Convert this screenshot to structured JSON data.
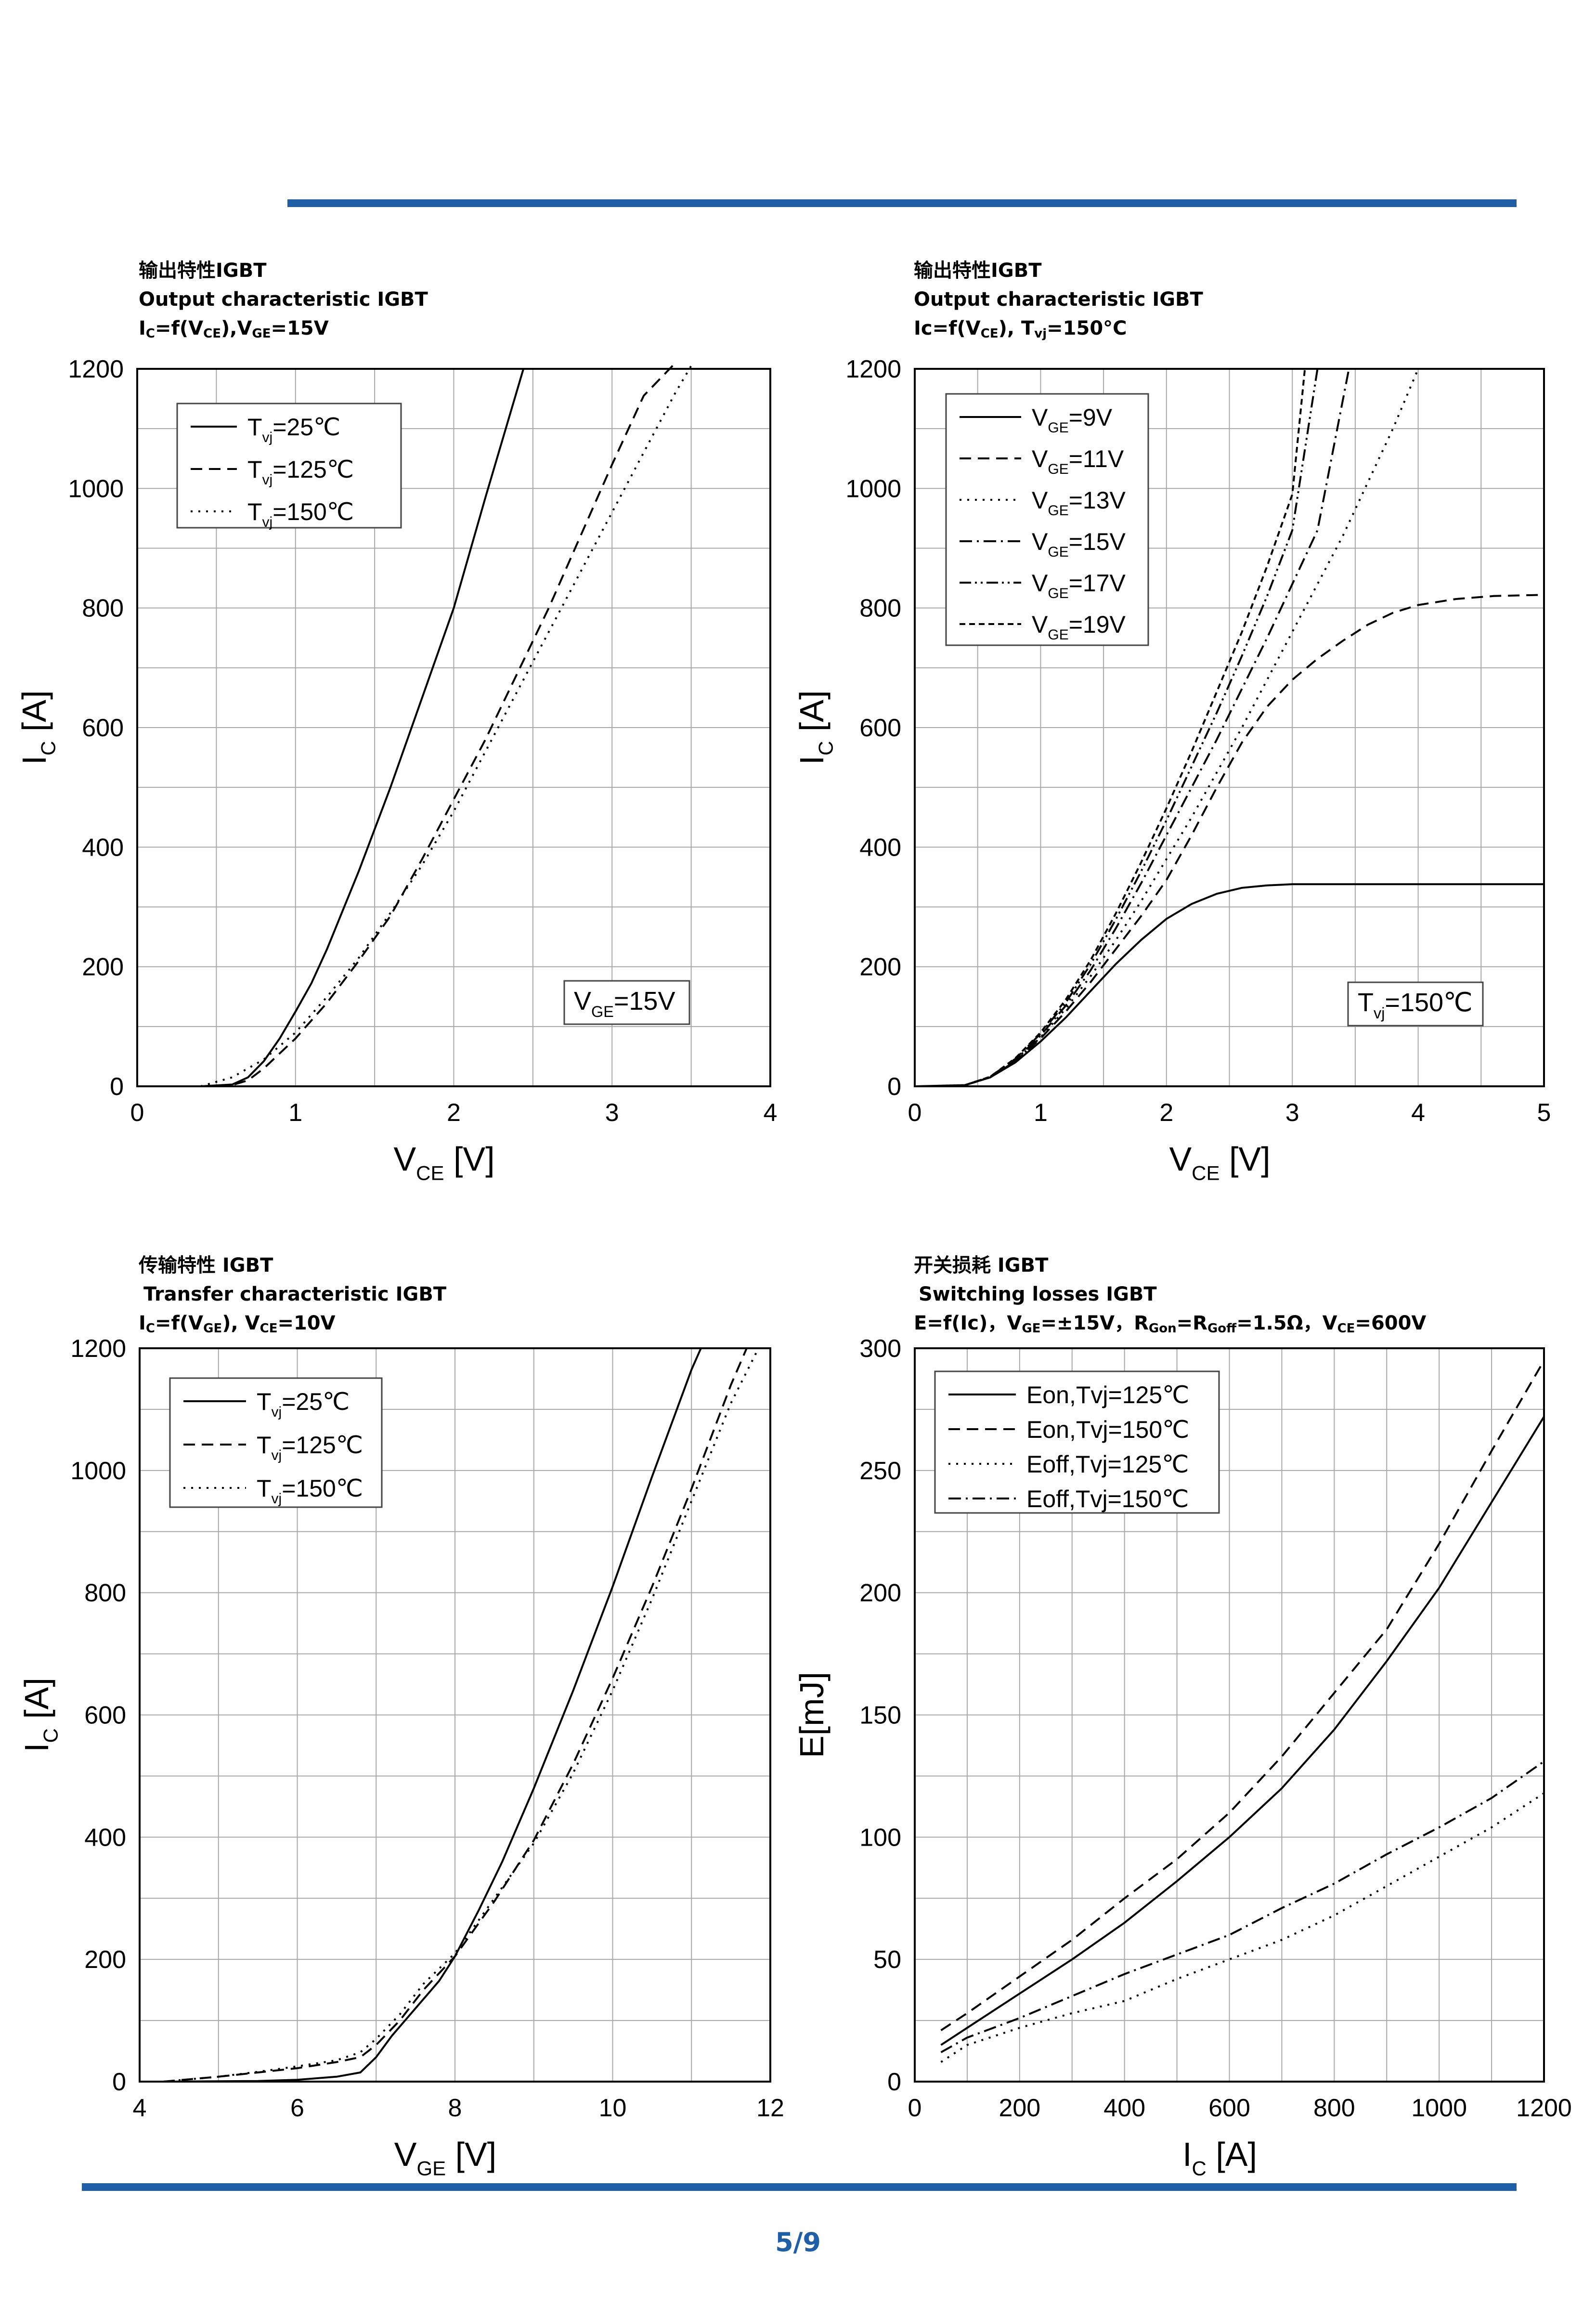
{
  "page": {
    "number": "5/9",
    "accent_color": "#1f5fa8"
  },
  "captions": {
    "c1": {
      "cn": "输出特性IGBT",
      "en": "Output characteristic IGBT",
      "f_a": "I",
      "f_a_sub": "C",
      "f_b": "=f(V",
      "f_b_sub": "CE",
      "f_c": "),V",
      "f_c_sub": "GE",
      "f_d": "=15V"
    },
    "c2": {
      "cn": "输出特性IGBT",
      "en": "Output characteristic IGBT",
      "f_a": "Ic=f(V",
      "f_a_sub": "CE",
      "f_b": "), T",
      "f_b_sub": "vj",
      "f_c": "=150°C"
    },
    "c3": {
      "cn": "传输特性 IGBT",
      "en": "Transfer characteristic IGBT",
      "f_a": "I",
      "f_a_sub": "C",
      "f_b": "=f(V",
      "f_b_sub": "GE",
      "f_c": "), V",
      "f_c_sub": "CE",
      "f_d": "=10V"
    },
    "c4": {
      "cn": "开关损耗 IGBT",
      "en": "Switching losses IGBT",
      "f_a": "E=f(Ic)，V",
      "f_a_sub": "GE",
      "f_b": "=±15V，R",
      "f_b_sub": "Gon",
      "f_c": "=R",
      "f_c_sub": "Goff",
      "f_d": "=1.5Ω，V",
      "f_d_sub": "CE",
      "f_e": "=600V"
    }
  },
  "chart_data": [
    {
      "type": "line",
      "title": "Output characteristic IGBT",
      "xlabel": "V",
      "xlabel_sub": "CE",
      "xlabel_unit": " [V]",
      "ylabel": "I",
      "ylabel_sub": "C",
      "ylabel_unit": " [A]",
      "xlim": [
        0,
        4
      ],
      "ylim": [
        0,
        1200
      ],
      "xticks": [
        0,
        1,
        2,
        3,
        4
      ],
      "yticks": [
        0,
        200,
        400,
        600,
        800,
        1000,
        1200
      ],
      "xgrid": 0.5,
      "ygrid": 100,
      "legend_position": "top-left",
      "annotation": {
        "main": "V",
        "sub": "GE",
        "rest": "=15V",
        "position": "bottom-right"
      },
      "series": [
        {
          "name": "T",
          "name_sub": "vj",
          "name_rest": "=25℃",
          "dash": "solid",
          "x": [
            0.4,
            0.6,
            0.7,
            0.8,
            0.9,
            1.0,
            1.1,
            1.2,
            1.4,
            1.6,
            1.8,
            2.0,
            2.2,
            2.44
          ],
          "y": [
            0,
            3,
            15,
            42,
            80,
            125,
            172,
            230,
            360,
            500,
            650,
            800,
            985,
            1200
          ]
        },
        {
          "name": "T",
          "name_sub": "vj",
          "name_rest": "=125℃",
          "dash": "dash",
          "x": [
            0.5,
            0.6,
            0.7,
            0.8,
            0.9,
            1.0,
            1.2,
            1.4,
            1.6,
            1.8,
            2.0,
            2.2,
            2.4,
            2.6,
            2.8,
            3.0,
            3.2,
            3.4
          ],
          "y": [
            0,
            2,
            10,
            30,
            55,
            80,
            140,
            210,
            285,
            380,
            480,
            580,
            690,
            800,
            920,
            1040,
            1155,
            1210
          ]
        },
        {
          "name": "T",
          "name_sub": "vj",
          "name_rest": "=150℃",
          "dash": "dot",
          "x": [
            0.4,
            0.6,
            0.8,
            1.0,
            1.2,
            1.4,
            1.6,
            1.8,
            2.0,
            2.2,
            2.4,
            2.6,
            2.8,
            3.0,
            3.2,
            3.4,
            3.5
          ],
          "y": [
            0,
            15,
            45,
            90,
            150,
            215,
            290,
            370,
            460,
            560,
            660,
            760,
            860,
            960,
            1060,
            1160,
            1205
          ]
        }
      ]
    },
    {
      "type": "line",
      "title": "Output characteristic IGBT",
      "xlabel": "V",
      "xlabel_sub": "CE",
      "xlabel_unit": " [V]",
      "ylabel": "I",
      "ylabel_sub": "C",
      "ylabel_unit": " [A]",
      "xlim": [
        0,
        5
      ],
      "ylim": [
        0,
        1200
      ],
      "xticks": [
        0,
        1,
        2,
        3,
        4,
        5
      ],
      "yticks": [
        0,
        200,
        400,
        600,
        800,
        1000,
        1200
      ],
      "xgrid": 0.5,
      "ygrid": 100,
      "legend_position": "top-left",
      "annotation": {
        "main": "T",
        "sub": "vj",
        "rest": "=150℃",
        "position": "bottom-right"
      },
      "series": [
        {
          "name": "V",
          "name_sub": "GE",
          "name_rest": "=9V",
          "dash": "solid",
          "x": [
            0,
            0.4,
            0.6,
            0.8,
            1.0,
            1.2,
            1.4,
            1.6,
            1.8,
            2.0,
            2.2,
            2.4,
            2.6,
            2.8,
            3.0,
            3.4,
            4.0,
            5.0
          ],
          "y": [
            0,
            2,
            15,
            40,
            75,
            115,
            160,
            205,
            245,
            280,
            305,
            322,
            332,
            336,
            338,
            338,
            338,
            338
          ]
        },
        {
          "name": "V",
          "name_sub": "GE",
          "name_rest": "=11V",
          "dash": "dash",
          "x": [
            0.4,
            0.6,
            0.8,
            1.0,
            1.2,
            1.4,
            1.6,
            1.8,
            2.0,
            2.2,
            2.4,
            2.6,
            2.8,
            3.0,
            3.2,
            3.4,
            3.6,
            3.8,
            4.0,
            4.3,
            4.6,
            5.0
          ],
          "y": [
            2,
            15,
            42,
            80,
            125,
            175,
            230,
            285,
            345,
            420,
            500,
            575,
            635,
            680,
            715,
            745,
            772,
            792,
            805,
            815,
            820,
            822
          ]
        },
        {
          "name": "V",
          "name_sub": "GE",
          "name_rest": "=13V",
          "dash": "dot",
          "x": [
            0.4,
            0.6,
            0.8,
            1.0,
            1.2,
            1.4,
            1.6,
            1.8,
            2.0,
            2.2,
            2.4,
            2.6,
            2.8,
            3.0,
            3.2,
            3.4,
            3.6,
            3.8,
            4.0
          ],
          "y": [
            2,
            15,
            42,
            82,
            130,
            185,
            245,
            310,
            380,
            450,
            525,
            600,
            680,
            760,
            840,
            920,
            1010,
            1100,
            1200
          ]
        },
        {
          "name": "V",
          "name_sub": "GE",
          "name_rest": "=15V",
          "dash": "dashdot",
          "x": [
            0.4,
            0.6,
            0.8,
            1.0,
            1.2,
            1.4,
            1.6,
            1.8,
            2.0,
            2.2,
            2.4,
            2.6,
            2.8,
            3.0,
            3.2,
            3.45
          ],
          "y": [
            2,
            15,
            44,
            85,
            135,
            195,
            265,
            340,
            420,
            500,
            580,
            665,
            750,
            840,
            930,
            1200
          ]
        },
        {
          "name": "V",
          "name_sub": "GE",
          "name_rest": "=17V",
          "dash": "dashdotdot",
          "x": [
            0.4,
            0.6,
            0.8,
            1.0,
            1.2,
            1.4,
            1.6,
            1.8,
            2.0,
            2.2,
            2.4,
            2.6,
            2.8,
            3.0,
            3.2
          ],
          "y": [
            2,
            16,
            46,
            88,
            140,
            205,
            280,
            360,
            445,
            535,
            625,
            720,
            820,
            930,
            1200
          ]
        },
        {
          "name": "V",
          "name_sub": "GE",
          "name_rest": "=19V",
          "dash": "shortdash",
          "x": [
            0.4,
            0.6,
            0.8,
            1.0,
            1.2,
            1.4,
            1.6,
            1.8,
            2.0,
            2.2,
            2.4,
            2.6,
            2.8,
            3.0,
            3.1
          ],
          "y": [
            2,
            16,
            47,
            90,
            145,
            212,
            290,
            375,
            465,
            560,
            660,
            760,
            870,
            990,
            1200
          ]
        }
      ]
    },
    {
      "type": "line",
      "title": "Transfer characteristic IGBT",
      "xlabel": "V",
      "xlabel_sub": "GE",
      "xlabel_unit": " [V]",
      "ylabel": "I",
      "ylabel_sub": "C",
      "ylabel_unit": " [A]",
      "xlim": [
        4,
        12
      ],
      "ylim": [
        0,
        1200
      ],
      "xticks": [
        4,
        6,
        8,
        10,
        12
      ],
      "yticks": [
        0,
        200,
        400,
        600,
        800,
        1000,
        1200
      ],
      "xgrid": 1,
      "ygrid": 100,
      "legend_position": "top-left",
      "series": [
        {
          "name": "T",
          "name_sub": "vj",
          "name_rest": "=25℃",
          "dash": "solid",
          "x": [
            4.3,
            5.5,
            6.0,
            6.5,
            6.8,
            7.0,
            7.2,
            7.4,
            7.6,
            7.8,
            8.0,
            8.3,
            8.6,
            9.0,
            9.5,
            10.0,
            10.5,
            11.0,
            11.12
          ],
          "y": [
            0,
            1,
            3,
            8,
            15,
            40,
            75,
            105,
            135,
            165,
            205,
            280,
            360,
            480,
            640,
            810,
            990,
            1165,
            1200
          ]
        },
        {
          "name": "T",
          "name_sub": "vj",
          "name_rest": "=125℃",
          "dash": "dash",
          "x": [
            4.3,
            5.0,
            5.5,
            6.0,
            6.5,
            6.8,
            7.0,
            7.3,
            7.6,
            8.0,
            8.5,
            9.0,
            9.5,
            10.0,
            10.5,
            11.0,
            11.5,
            11.7
          ],
          "y": [
            0,
            8,
            15,
            22,
            32,
            40,
            60,
            100,
            150,
            205,
            295,
            395,
            520,
            660,
            810,
            970,
            1140,
            1200
          ]
        },
        {
          "name": "T",
          "name_sub": "vj",
          "name_rest": "=150℃",
          "dash": "dot",
          "x": [
            4.3,
            5.0,
            5.5,
            6.0,
            6.5,
            6.8,
            7.0,
            7.3,
            7.6,
            8.0,
            8.5,
            9.0,
            9.5,
            10.0,
            10.5,
            11.0,
            11.5,
            11.85
          ],
          "y": [
            0,
            8,
            16,
            25,
            35,
            48,
            70,
            110,
            160,
            210,
            300,
            390,
            505,
            640,
            790,
            950,
            1110,
            1200
          ]
        }
      ]
    },
    {
      "type": "line",
      "title": "Switching losses IGBT",
      "xlabel": "I",
      "xlabel_sub": "C",
      "xlabel_unit": " [A]",
      "ylabel": "E[mJ]",
      "ylabel_sub": "",
      "ylabel_unit": "",
      "xlim": [
        0,
        1200
      ],
      "ylim": [
        0,
        300
      ],
      "xticks": [
        0,
        200,
        400,
        600,
        800,
        1000,
        1200
      ],
      "yticks": [
        0,
        50,
        100,
        150,
        200,
        250,
        300
      ],
      "xgrid": 100,
      "ygrid": 25,
      "legend_position": "top-left",
      "series": [
        {
          "name": "Eon,Tvj=125℃",
          "name_sub": "",
          "name_rest": "",
          "dash": "solid",
          "x": [
            50,
            100,
            200,
            300,
            400,
            500,
            600,
            700,
            800,
            900,
            1000,
            1100,
            1200
          ],
          "y": [
            15,
            22,
            36,
            50,
            65,
            82,
            100,
            120,
            144,
            172,
            202,
            237,
            272
          ]
        },
        {
          "name": "Eon,Tvj=150℃",
          "name_sub": "",
          "name_rest": "",
          "dash": "dash",
          "x": [
            50,
            100,
            200,
            300,
            400,
            500,
            600,
            700,
            800,
            900,
            1000,
            1100,
            1200
          ],
          "y": [
            21,
            28,
            43,
            58,
            75,
            91,
            110,
            133,
            159,
            185,
            220,
            258,
            295
          ]
        },
        {
          "name": "Eoff,Tvj=125℃",
          "name_sub": "",
          "name_rest": "",
          "dash": "dot",
          "x": [
            50,
            100,
            200,
            300,
            400,
            500,
            600,
            700,
            800,
            900,
            1000,
            1100,
            1200
          ],
          "y": [
            8,
            15,
            22,
            28,
            33,
            42,
            50,
            58,
            68,
            80,
            92,
            104,
            118
          ]
        },
        {
          "name": "Eoff,Tvj=150℃",
          "name_sub": "",
          "name_rest": "",
          "dash": "dashdot",
          "x": [
            50,
            100,
            200,
            300,
            400,
            500,
            600,
            700,
            800,
            900,
            1000,
            1100,
            1200
          ],
          "y": [
            12,
            18,
            26,
            35,
            44,
            52,
            60,
            71,
            81,
            93,
            104,
            116,
            131
          ]
        }
      ]
    }
  ]
}
